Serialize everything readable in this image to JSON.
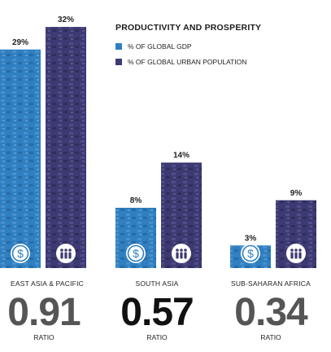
{
  "legend": {
    "title": "PRODUCTIVITY AND PROSPERITY",
    "items": [
      {
        "label": "% OF GLOBAL GDP",
        "color": "#2f7fc1"
      },
      {
        "label": "% OF GLOBAL URBAN POPULATION",
        "color": "#3d3a73"
      }
    ]
  },
  "chart_data": {
    "type": "bar",
    "categories": [
      "EAST ASIA & PACIFIC",
      "SOUTH ASIA",
      "SUB-SAHARAN AFRICA"
    ],
    "series": [
      {
        "name": "% OF GLOBAL GDP",
        "values": [
          29,
          8,
          3
        ],
        "color": "#2f7fc1",
        "icon": "dollar-icon"
      },
      {
        "name": "% OF GLOBAL URBAN POPULATION",
        "values": [
          32,
          14,
          9
        ],
        "color": "#3d3a73",
        "icon": "people-icon"
      }
    ],
    "value_labels": [
      [
        "29%",
        "8%",
        "3%"
      ],
      [
        "32%",
        "14%",
        "9%"
      ]
    ],
    "ratios": [
      {
        "value": "0.91",
        "label": "RATIO",
        "color": "#555555"
      },
      {
        "value": "0.57",
        "label": "RATIO",
        "color": "#111111"
      },
      {
        "value": "0.34",
        "label": "RATIO",
        "color": "#555555"
      }
    ]
  }
}
